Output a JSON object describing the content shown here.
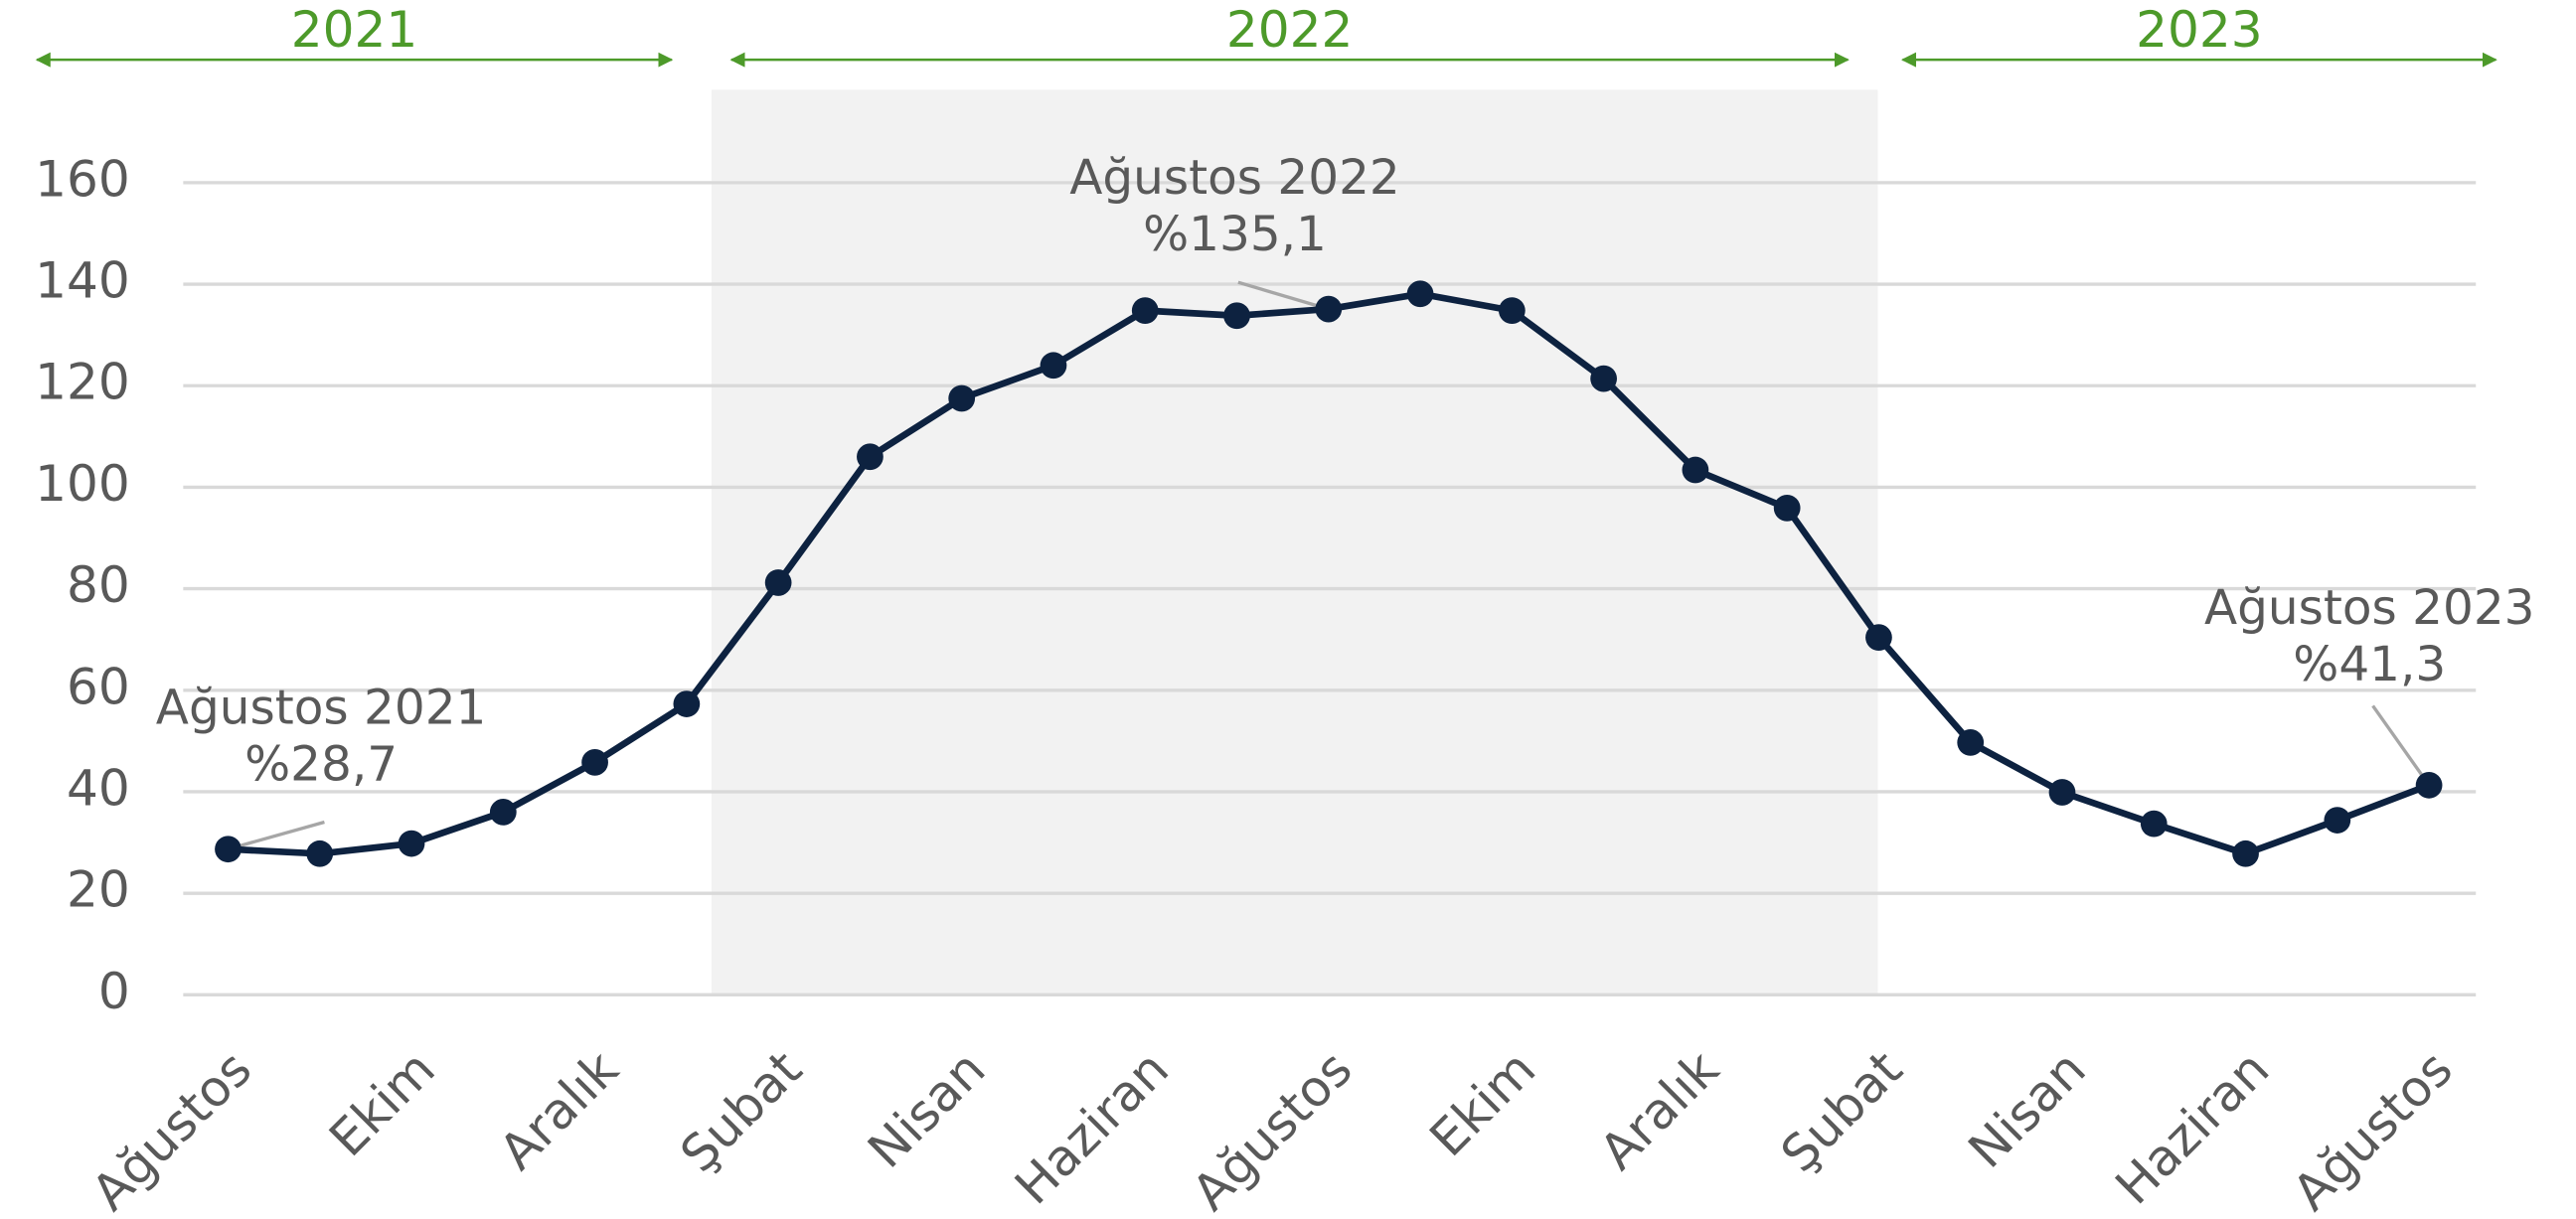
{
  "chart_data": {
    "type": "line",
    "categories": [
      "Ağustos",
      null,
      "Ekim",
      null,
      "Aralık",
      null,
      "Şubat",
      null,
      "Nisan",
      null,
      "Haziran",
      null,
      "Ağustos",
      null,
      "Ekim",
      null,
      "Aralık",
      null,
      "Şubat",
      null,
      "Nisan",
      null,
      "Haziran",
      null,
      "Ağustos"
    ],
    "series": [
      {
        "name": null,
        "color": "#0d2240",
        "values": [
          28.7,
          27.8,
          29.8,
          36.0,
          45.8,
          57.3,
          81.2,
          106.0,
          117.5,
          124.0,
          134.8,
          133.8,
          135.1,
          138.1,
          134.8,
          121.4,
          103.4,
          95.9,
          70.4,
          49.7,
          39.9,
          33.7,
          27.8,
          34.4,
          41.3
        ]
      }
    ],
    "ylim": [
      0,
      160
    ],
    "yticks": [
      0,
      20,
      40,
      60,
      80,
      100,
      120,
      140,
      160
    ],
    "grid": true,
    "year_labels": [
      "2021",
      "2022",
      "2023"
    ],
    "year_color": "#4d9a2a",
    "shade_color": "#f2f2f2",
    "annotations": [
      {
        "label": "Ağustos 2021",
        "value_label": "%28,7"
      },
      {
        "label": "Ağustos 2022",
        "value_label": "%135,1"
      },
      {
        "label": "Ağustos 2023",
        "value_label": "%41,3"
      }
    ]
  }
}
